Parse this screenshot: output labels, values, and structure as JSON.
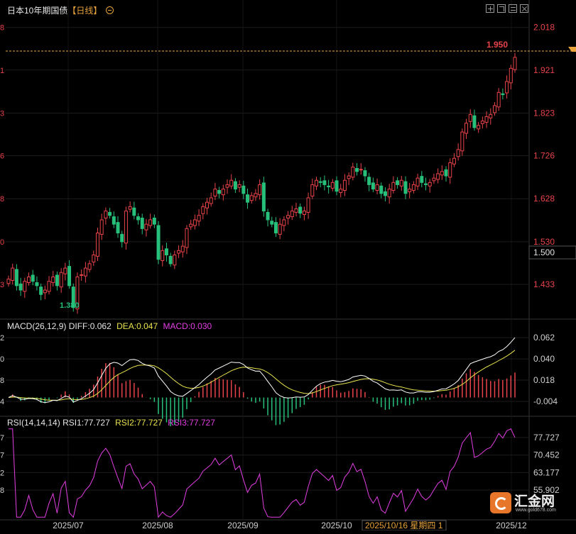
{
  "header": {
    "title": "日本10年期国债",
    "period": "【日线】",
    "period_icon": "circle-minus-icon"
  },
  "toolbar": {
    "icons": [
      "crosshair-icon",
      "expand-icon",
      "chart-settings-icon",
      "close-icon"
    ]
  },
  "price_labels": {
    "last_price": "1.950",
    "cursor_price": "1.500",
    "low_marker": "1.380"
  },
  "macd": {
    "title": "MACD(26,12,9)",
    "diff": "DIFF:0.062",
    "dea": "DEA:0.047",
    "macd": "MACD:0.030"
  },
  "rsi": {
    "title": "RSI(14,14,14)",
    "rsi1": "RSI1:77.727",
    "rsi2": "RSI2:77.727",
    "rsi3": "RSI3:77.727"
  },
  "x_axis": {
    "labels": [
      "2025/07",
      "2025/08",
      "2025/09",
      "2025/10",
      "2025/12"
    ],
    "cursor_label": "2025/10/16 星期四 1"
  },
  "left_cut_ticks": {
    "price": [
      "8",
      "1",
      "3",
      "6",
      "8",
      "0",
      "3"
    ],
    "macd": [
      "2",
      "0",
      "8",
      "4"
    ],
    "rsi": [
      "7",
      "7",
      "2",
      "8"
    ]
  },
  "logo": {
    "text": "汇金网",
    "url_text": "www.gold678.com",
    "icon": "gold678-logo-icon"
  },
  "colors": {
    "up": "#e8434a",
    "down": "#27c07a",
    "diff_line": "#ffffff",
    "dea_line": "#e8e34d",
    "rsi_line": "#e33ee3",
    "price_axis_text": "#e8434a",
    "sub_axis_text": "#d0d0d0",
    "last_price_line": "#e8a33a",
    "grid": "#1c1c1c"
  },
  "chart_data": [
    {
      "type": "candlestick",
      "title": "日本10年期国债【日线】",
      "y_ticks": [
        2.018,
        1.921,
        1.823,
        1.726,
        1.628,
        1.53,
        1.433
      ],
      "ylim": [
        1.37,
        2.045
      ],
      "last_price": 1.95,
      "low_marker_value": 1.38,
      "x_labels": [
        "2025/07",
        "2025/08",
        "2025/09",
        "2025/10",
        "2025/12"
      ],
      "close": [
        1.445,
        1.47,
        1.43,
        1.42,
        1.44,
        1.45,
        1.44,
        1.43,
        1.41,
        1.42,
        1.44,
        1.45,
        1.43,
        1.46,
        1.47,
        1.43,
        1.38,
        1.45,
        1.455,
        1.47,
        1.48,
        1.5,
        1.55,
        1.58,
        1.6,
        1.59,
        1.57,
        1.55,
        1.53,
        1.6,
        1.61,
        1.59,
        1.58,
        1.56,
        1.57,
        1.58,
        1.57,
        1.49,
        1.51,
        1.5,
        1.48,
        1.5,
        1.51,
        1.52,
        1.56,
        1.57,
        1.58,
        1.59,
        1.61,
        1.62,
        1.63,
        1.65,
        1.64,
        1.65,
        1.66,
        1.67,
        1.65,
        1.66,
        1.64,
        1.62,
        1.635,
        1.64,
        1.66,
        1.6,
        1.58,
        1.57,
        1.55,
        1.57,
        1.58,
        1.59,
        1.6,
        1.605,
        1.595,
        1.6,
        1.63,
        1.66,
        1.67,
        1.665,
        1.66,
        1.655,
        1.665,
        1.645,
        1.65,
        1.67,
        1.68,
        1.7,
        1.69,
        1.695,
        1.68,
        1.66,
        1.65,
        1.66,
        1.64,
        1.635,
        1.65,
        1.665,
        1.66,
        1.67,
        1.64,
        1.65,
        1.66,
        1.675,
        1.665,
        1.66,
        1.665,
        1.675,
        1.685,
        1.69,
        1.68,
        1.71,
        1.72,
        1.74,
        1.78,
        1.8,
        1.82,
        1.79,
        1.795,
        1.805,
        1.815,
        1.82,
        1.84,
        1.87,
        1.865,
        1.895,
        1.925,
        1.95
      ],
      "ma_series": [
        "DIFF",
        "DEA",
        "MACD"
      ]
    },
    {
      "type": "bar",
      "title": "MACD(26,12,9)",
      "y_ticks": [
        0.062,
        0.04,
        0.018,
        -0.004
      ],
      "ylim": [
        -0.0165,
        0.0665
      ],
      "series": [
        {
          "name": "DIFF",
          "last": 0.062
        },
        {
          "name": "DEA",
          "last": 0.047
        },
        {
          "name": "MACD",
          "last": 0.03
        }
      ]
    },
    {
      "type": "line",
      "title": "RSI(14,14,14)",
      "y_ticks": [
        77.727,
        70.452,
        63.177,
        55.902
      ],
      "ylim": [
        44.2,
        81.8
      ],
      "series": [
        {
          "name": "RSI1",
          "last": 77.727
        },
        {
          "name": "RSI2",
          "last": 77.727
        },
        {
          "name": "RSI3",
          "last": 77.727
        }
      ]
    }
  ]
}
